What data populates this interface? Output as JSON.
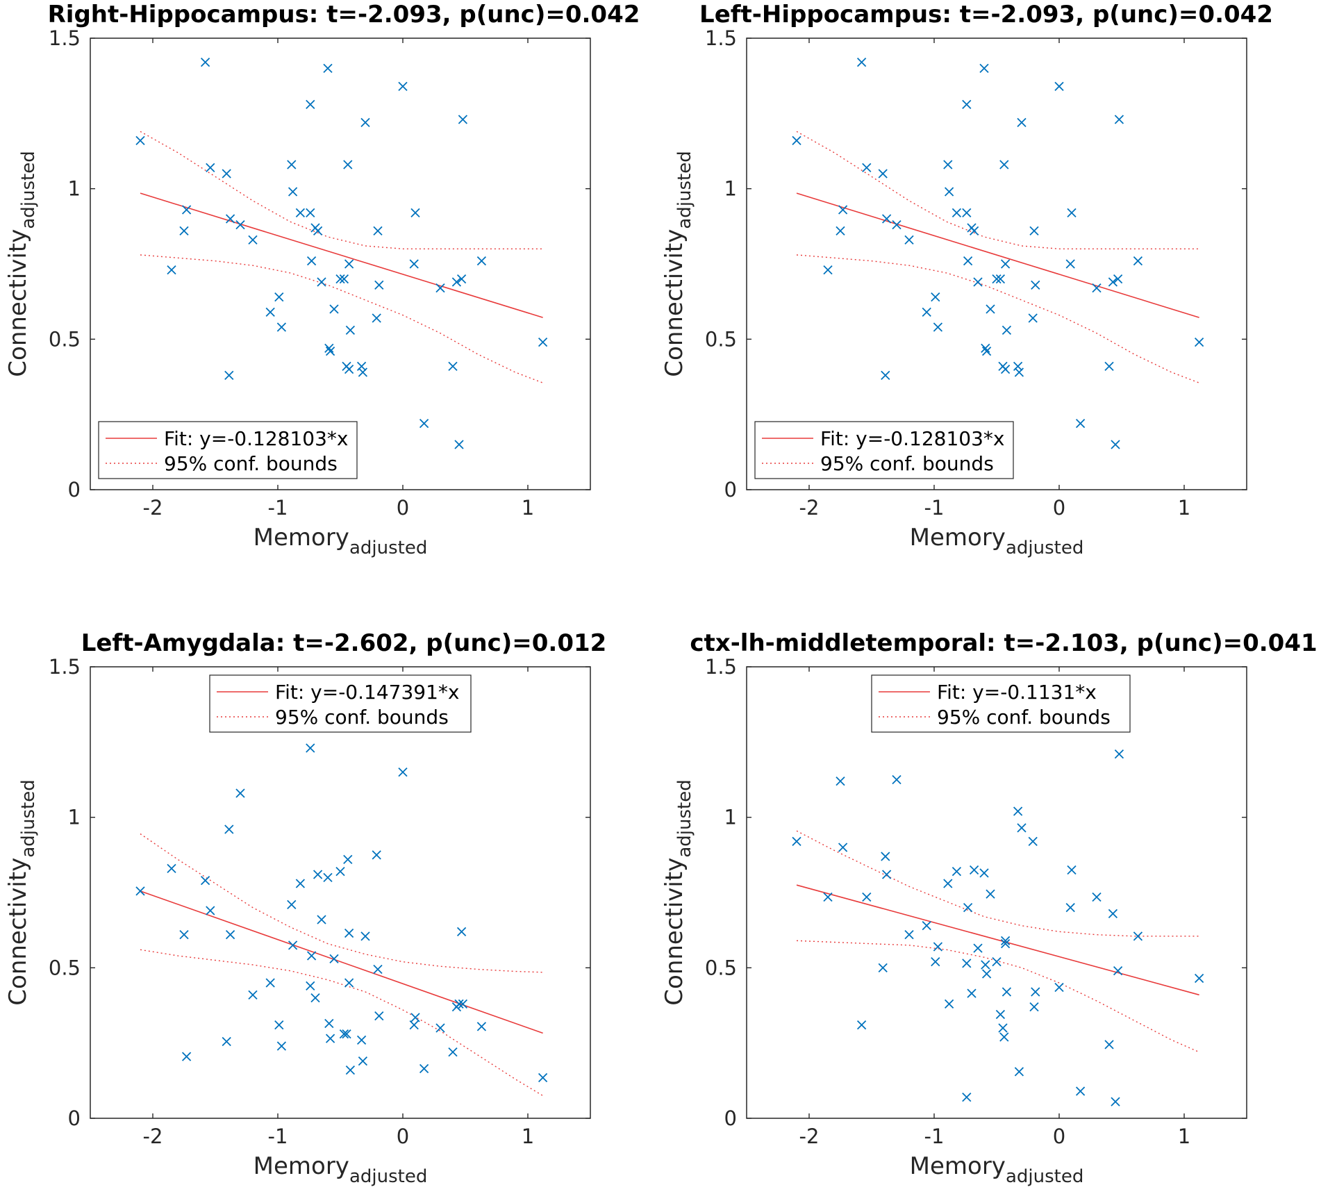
{
  "colors": {
    "points": "#0072BD",
    "fit": "#E83A3A",
    "axes": "#262626"
  },
  "chart_data": [
    {
      "type": "scatter",
      "title": "Right-Hippocampus: t=-2.093, p(unc)=0.042",
      "xlabel": "Memory",
      "xlabel_sub": "adjusted",
      "ylabel": "Connectivity",
      "ylabel_sub": "adjusted",
      "xlim": [
        -2.5,
        1.5
      ],
      "ylim": [
        0,
        1.5
      ],
      "xticks": [
        -2,
        -1,
        0,
        1
      ],
      "yticks": [
        0,
        0.5,
        1,
        1.5
      ],
      "xtick_labels": [
        "-2",
        "-1",
        "0",
        "1"
      ],
      "ytick_labels": [
        "0",
        "0.5",
        "1",
        "1.5"
      ],
      "legend": {
        "location": "bottom-left",
        "fit_label": "Fit: y=-0.128103*x",
        "bounds_label": "95% conf. bounds"
      },
      "fit": {
        "x": [
          -2.1,
          1.12
        ],
        "y": [
          0.985,
          0.572
        ]
      },
      "upper_bound": {
        "x": [
          -2.1,
          -1.8,
          -1.5,
          -1.2,
          -0.9,
          -0.6,
          -0.3,
          0,
          0.3,
          0.6,
          0.9,
          1.12
        ],
        "y": [
          1.19,
          1.12,
          1.04,
          0.96,
          0.89,
          0.84,
          0.81,
          0.8,
          0.8,
          0.8,
          0.8,
          0.8
        ]
      },
      "lower_bound": {
        "x": [
          -2.1,
          -1.8,
          -1.5,
          -1.2,
          -0.9,
          -0.6,
          -0.3,
          0,
          0.3,
          0.6,
          0.9,
          1.12
        ],
        "y": [
          0.78,
          0.77,
          0.76,
          0.745,
          0.72,
          0.68,
          0.63,
          0.58,
          0.52,
          0.45,
          0.39,
          0.355
        ]
      },
      "points": {
        "x": [
          -2.1,
          -1.85,
          -1.75,
          -1.73,
          -1.58,
          -1.54,
          -1.41,
          -1.39,
          -1.38,
          -1.3,
          -1.2,
          -1.06,
          -0.99,
          -0.97,
          -0.89,
          -0.88,
          -0.82,
          -0.74,
          -0.74,
          -0.73,
          -0.7,
          -0.68,
          -0.65,
          -0.6,
          -0.59,
          -0.58,
          -0.55,
          -0.5,
          -0.47,
          -0.45,
          -0.44,
          -0.43,
          -0.43,
          -0.42,
          -0.33,
          -0.32,
          -0.3,
          -0.21,
          -0.19,
          -0.2,
          0.0,
          0.1,
          0.09,
          0.17,
          0.3,
          0.4,
          0.43,
          0.45,
          0.47,
          0.48,
          0.63,
          1.12
        ],
        "y": [
          1.16,
          0.73,
          0.86,
          0.93,
          1.42,
          1.07,
          1.05,
          0.38,
          0.9,
          0.88,
          0.83,
          0.59,
          0.64,
          0.54,
          1.08,
          0.99,
          0.92,
          0.92,
          1.28,
          0.76,
          0.87,
          0.86,
          0.69,
          1.4,
          0.47,
          0.46,
          0.6,
          0.7,
          0.7,
          0.41,
          1.08,
          0.4,
          0.75,
          0.53,
          0.41,
          0.39,
          1.22,
          0.57,
          0.68,
          0.86,
          1.34,
          0.92,
          0.75,
          0.22,
          0.67,
          0.41,
          0.69,
          0.15,
          0.7,
          1.23,
          0.76,
          0.49
        ]
      }
    },
    {
      "type": "scatter",
      "title": "Left-Hippocampus: t=-2.093, p(unc)=0.042",
      "xlabel": "Memory",
      "xlabel_sub": "adjusted",
      "ylabel": "Connectivity",
      "ylabel_sub": "adjusted",
      "xlim": [
        -2.5,
        1.5
      ],
      "ylim": [
        0,
        1.5
      ],
      "xticks": [
        -2,
        -1,
        0,
        1
      ],
      "yticks": [
        0,
        0.5,
        1,
        1.5
      ],
      "xtick_labels": [
        "-2",
        "-1",
        "0",
        "1"
      ],
      "ytick_labels": [
        "0",
        "0.5",
        "1",
        "1.5"
      ],
      "legend": {
        "location": "bottom-left",
        "fit_label": "Fit: y=-0.128103*x",
        "bounds_label": "95% conf. bounds"
      },
      "fit": {
        "x": [
          -2.1,
          1.12
        ],
        "y": [
          0.985,
          0.572
        ]
      },
      "upper_bound": {
        "x": [
          -2.1,
          -1.8,
          -1.5,
          -1.2,
          -0.9,
          -0.6,
          -0.3,
          0,
          0.3,
          0.6,
          0.9,
          1.12
        ],
        "y": [
          1.19,
          1.12,
          1.04,
          0.96,
          0.89,
          0.84,
          0.81,
          0.8,
          0.8,
          0.8,
          0.8,
          0.8
        ]
      },
      "lower_bound": {
        "x": [
          -2.1,
          -1.8,
          -1.5,
          -1.2,
          -0.9,
          -0.6,
          -0.3,
          0,
          0.3,
          0.6,
          0.9,
          1.12
        ],
        "y": [
          0.78,
          0.77,
          0.76,
          0.745,
          0.72,
          0.68,
          0.63,
          0.58,
          0.52,
          0.45,
          0.39,
          0.355
        ]
      },
      "points": {
        "x": [
          -2.1,
          -1.85,
          -1.75,
          -1.73,
          -1.58,
          -1.54,
          -1.41,
          -1.39,
          -1.38,
          -1.3,
          -1.2,
          -1.06,
          -0.99,
          -0.97,
          -0.89,
          -0.88,
          -0.82,
          -0.74,
          -0.74,
          -0.73,
          -0.7,
          -0.68,
          -0.65,
          -0.6,
          -0.59,
          -0.58,
          -0.55,
          -0.5,
          -0.47,
          -0.45,
          -0.44,
          -0.43,
          -0.43,
          -0.42,
          -0.33,
          -0.32,
          -0.3,
          -0.21,
          -0.19,
          -0.2,
          0.0,
          0.1,
          0.09,
          0.17,
          0.3,
          0.4,
          0.43,
          0.45,
          0.47,
          0.48,
          0.63,
          1.12
        ],
        "y": [
          1.16,
          0.73,
          0.86,
          0.93,
          1.42,
          1.07,
          1.05,
          0.38,
          0.9,
          0.88,
          0.83,
          0.59,
          0.64,
          0.54,
          1.08,
          0.99,
          0.92,
          0.92,
          1.28,
          0.76,
          0.87,
          0.86,
          0.69,
          1.4,
          0.47,
          0.46,
          0.6,
          0.7,
          0.7,
          0.41,
          1.08,
          0.4,
          0.75,
          0.53,
          0.41,
          0.39,
          1.22,
          0.57,
          0.68,
          0.86,
          1.34,
          0.92,
          0.75,
          0.22,
          0.67,
          0.41,
          0.69,
          0.15,
          0.7,
          1.23,
          0.76,
          0.49
        ]
      }
    },
    {
      "type": "scatter",
      "title": "Left-Amygdala: t=-2.602, p(unc)=0.012",
      "xlabel": "Memory",
      "xlabel_sub": "adjusted",
      "ylabel": "Connectivity",
      "ylabel_sub": "adjusted",
      "xlim": [
        -2.5,
        1.5
      ],
      "ylim": [
        0,
        1.5
      ],
      "xticks": [
        -2,
        -1,
        0,
        1
      ],
      "yticks": [
        0,
        0.5,
        1,
        1.5
      ],
      "xtick_labels": [
        "-2",
        "-1",
        "0",
        "1"
      ],
      "ytick_labels": [
        "0",
        "0.5",
        "1",
        "1.5"
      ],
      "legend": {
        "location": "top",
        "fit_label": "Fit: y=-0.147391*x",
        "bounds_label": "95% conf. bounds"
      },
      "fit": {
        "x": [
          -2.1,
          1.12
        ],
        "y": [
          0.755,
          0.283
        ]
      },
      "upper_bound": {
        "x": [
          -2.1,
          -1.8,
          -1.5,
          -1.2,
          -0.9,
          -0.6,
          -0.3,
          0,
          0.3,
          0.6,
          0.9,
          1.12
        ],
        "y": [
          0.945,
          0.86,
          0.78,
          0.7,
          0.635,
          0.58,
          0.545,
          0.52,
          0.505,
          0.495,
          0.488,
          0.485
        ]
      },
      "lower_bound": {
        "x": [
          -2.1,
          -1.8,
          -1.5,
          -1.2,
          -0.9,
          -0.6,
          -0.3,
          0,
          0.3,
          0.6,
          0.9,
          1.12
        ],
        "y": [
          0.56,
          0.54,
          0.525,
          0.51,
          0.49,
          0.46,
          0.42,
          0.36,
          0.29,
          0.21,
          0.13,
          0.075
        ]
      },
      "points": {
        "x": [
          -2.1,
          -1.85,
          -1.75,
          -1.73,
          -1.58,
          -1.54,
          -1.41,
          -1.39,
          -1.38,
          -1.3,
          -1.2,
          -1.06,
          -0.99,
          -0.97,
          -0.89,
          -0.88,
          -0.82,
          -0.74,
          -0.74,
          -0.73,
          -0.7,
          -0.68,
          -0.65,
          -0.6,
          -0.59,
          -0.58,
          -0.55,
          -0.5,
          -0.47,
          -0.45,
          -0.44,
          -0.43,
          -0.43,
          -0.42,
          -0.33,
          -0.32,
          -0.3,
          -0.21,
          -0.19,
          -0.2,
          0.0,
          0.1,
          0.09,
          0.17,
          0.3,
          0.4,
          0.43,
          0.45,
          0.47,
          0.48,
          0.63,
          1.12
        ],
        "y": [
          0.755,
          0.83,
          0.61,
          0.205,
          0.79,
          0.69,
          0.255,
          0.96,
          0.61,
          1.08,
          0.41,
          0.45,
          0.31,
          0.24,
          0.71,
          0.575,
          0.78,
          0.44,
          1.23,
          0.54,
          0.4,
          0.81,
          0.66,
          0.8,
          0.315,
          0.265,
          0.53,
          0.82,
          0.28,
          0.28,
          0.86,
          0.45,
          0.615,
          0.16,
          0.26,
          0.19,
          0.605,
          0.875,
          0.34,
          0.495,
          1.15,
          0.335,
          0.31,
          0.165,
          0.3,
          0.22,
          0.37,
          0.38,
          0.62,
          0.38,
          0.305,
          0.135
        ]
      }
    },
    {
      "type": "scatter",
      "title": "ctx-lh-middletemporal: t=-2.103, p(unc)=0.041",
      "xlabel": "Memory",
      "xlabel_sub": "adjusted",
      "ylabel": "Connectivity",
      "ylabel_sub": "adjusted",
      "xlim": [
        -2.5,
        1.5
      ],
      "ylim": [
        0,
        1.5
      ],
      "xticks": [
        -2,
        -1,
        0,
        1
      ],
      "yticks": [
        0,
        0.5,
        1,
        1.5
      ],
      "xtick_labels": [
        "-2",
        "-1",
        "0",
        "1"
      ],
      "ytick_labels": [
        "0",
        "0.5",
        "1",
        "1.5"
      ],
      "legend": {
        "location": "top-right",
        "fit_label": "Fit: y=-0.1131*x",
        "bounds_label": "95% conf. bounds"
      },
      "fit": {
        "x": [
          -2.1,
          1.12
        ],
        "y": [
          0.775,
          0.41
        ]
      },
      "upper_bound": {
        "x": [
          -2.1,
          -1.8,
          -1.5,
          -1.2,
          -0.9,
          -0.6,
          -0.3,
          0,
          0.3,
          0.6,
          0.9,
          1.12
        ],
        "y": [
          0.955,
          0.89,
          0.83,
          0.77,
          0.72,
          0.67,
          0.64,
          0.62,
          0.61,
          0.605,
          0.605,
          0.605
        ]
      },
      "lower_bound": {
        "x": [
          -2.1,
          -1.8,
          -1.5,
          -1.2,
          -0.9,
          -0.6,
          -0.3,
          0,
          0.3,
          0.6,
          0.9,
          1.12
        ],
        "y": [
          0.59,
          0.585,
          0.58,
          0.575,
          0.56,
          0.535,
          0.5,
          0.45,
          0.39,
          0.325,
          0.26,
          0.22
        ]
      },
      "points": {
        "x": [
          -2.1,
          -1.85,
          -1.75,
          -1.73,
          -1.58,
          -1.54,
          -1.41,
          -1.39,
          -1.38,
          -1.3,
          -1.2,
          -1.06,
          -0.99,
          -0.97,
          -0.89,
          -0.88,
          -0.82,
          -0.74,
          -0.74,
          -0.73,
          -0.7,
          -0.68,
          -0.65,
          -0.6,
          -0.59,
          -0.58,
          -0.55,
          -0.5,
          -0.47,
          -0.45,
          -0.44,
          -0.43,
          -0.43,
          -0.42,
          -0.33,
          -0.32,
          -0.3,
          -0.21,
          -0.19,
          -0.2,
          0.0,
          0.1,
          0.09,
          0.17,
          0.3,
          0.4,
          0.43,
          0.45,
          0.47,
          0.48,
          0.63,
          1.12
        ],
        "y": [
          0.92,
          0.735,
          1.12,
          0.9,
          0.31,
          0.735,
          0.5,
          0.87,
          0.81,
          1.125,
          0.61,
          0.64,
          0.52,
          0.57,
          0.78,
          0.38,
          0.82,
          0.515,
          0.07,
          0.7,
          0.415,
          0.825,
          0.565,
          0.815,
          0.51,
          0.48,
          0.745,
          0.52,
          0.345,
          0.3,
          0.27,
          0.58,
          0.59,
          0.42,
          1.02,
          0.155,
          0.965,
          0.92,
          0.42,
          0.37,
          0.435,
          0.825,
          0.7,
          0.09,
          0.735,
          0.245,
          0.68,
          0.055,
          0.49,
          1.21,
          0.605,
          0.465
        ]
      }
    }
  ]
}
